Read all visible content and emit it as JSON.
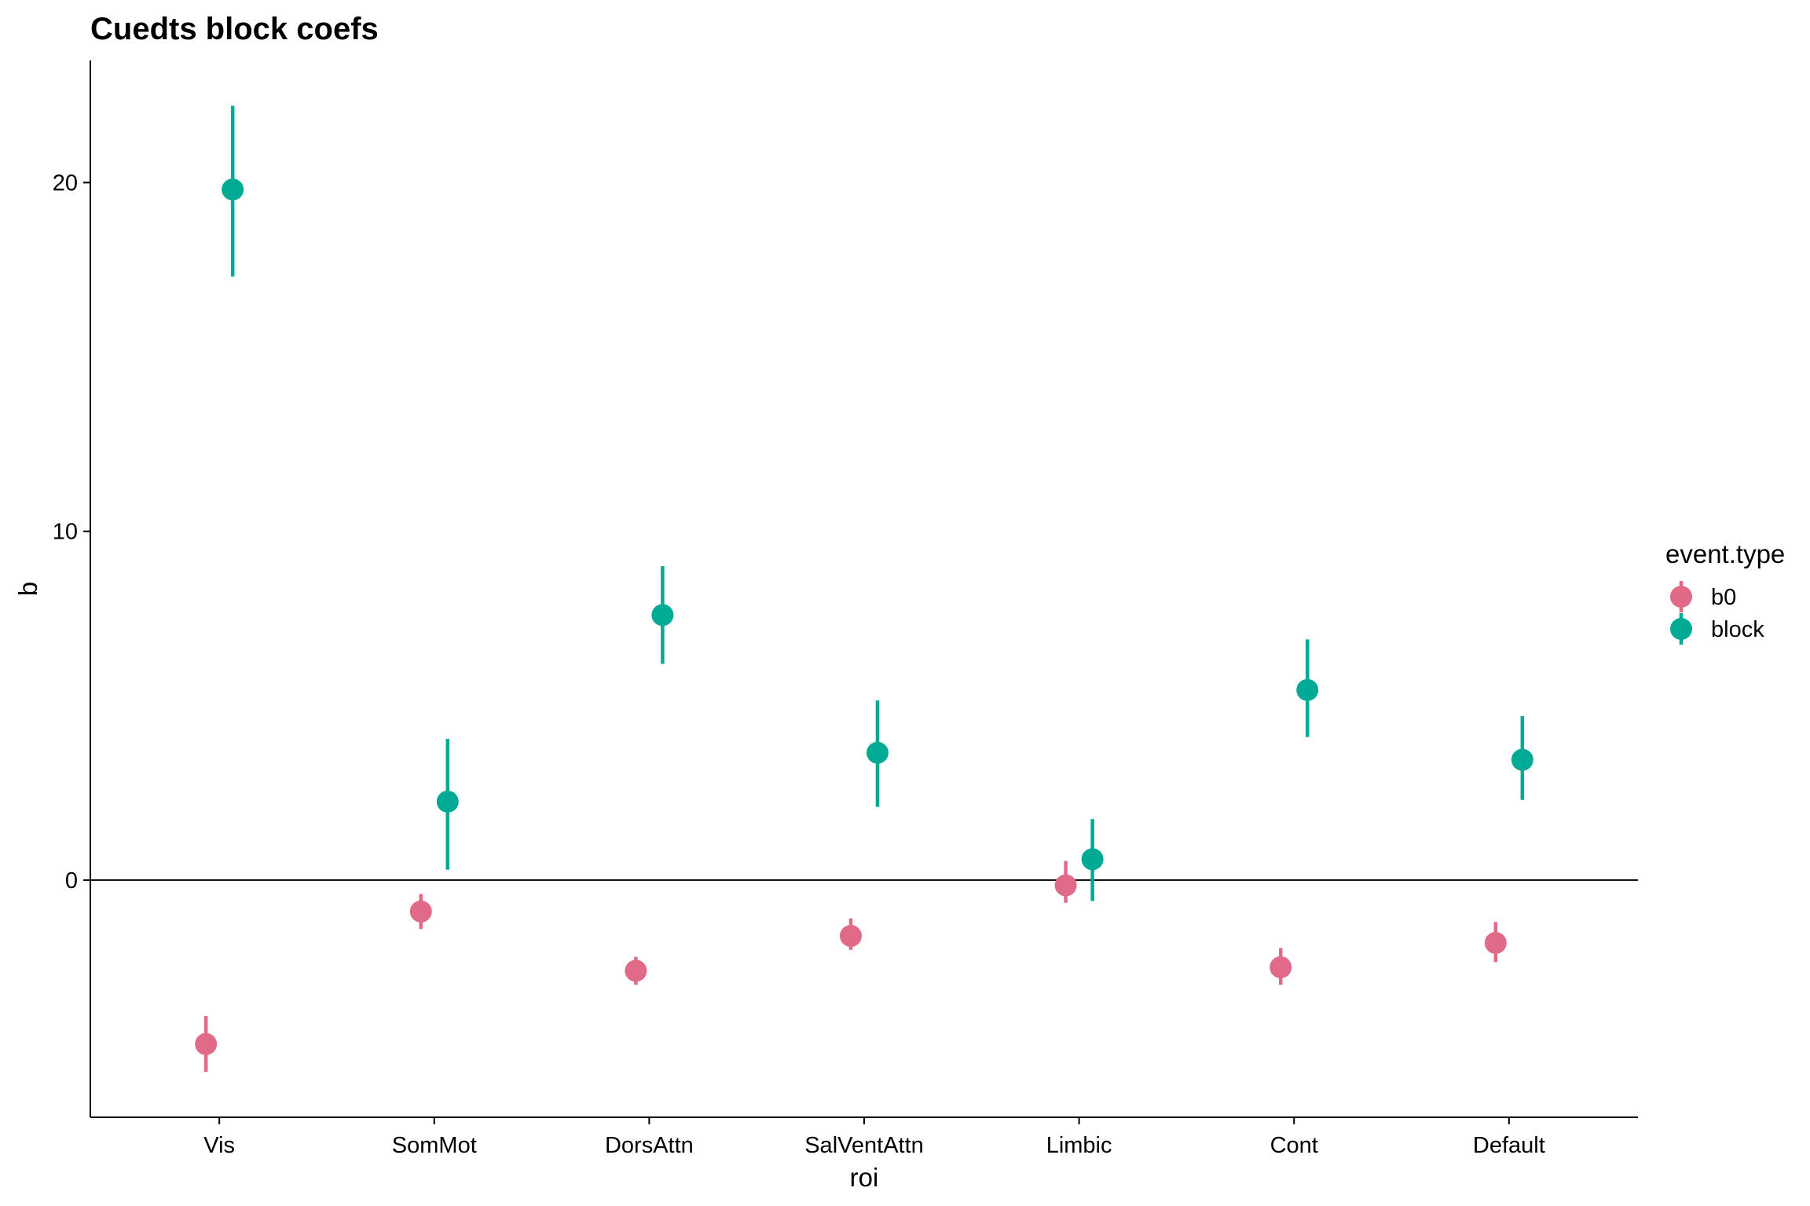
{
  "chart_data": {
    "type": "scatter",
    "title": "Cuedts block coefs",
    "xlabel": "roi",
    "ylabel": "b",
    "categories": [
      "Vis",
      "SomMot",
      "DorsAttn",
      "SalVentAttn",
      "Limbic",
      "Cont",
      "Default"
    ],
    "yticks": [
      "0",
      "10",
      "20"
    ],
    "ylim": [
      -6.8,
      23.5
    ],
    "hline": 0,
    "grid": false,
    "legend": {
      "title": "event.type",
      "position": "right"
    },
    "series": [
      {
        "name": "b0",
        "color": "#E06A87",
        "values": [
          -4.7,
          -0.9,
          -2.6,
          -1.6,
          -0.15,
          -2.5,
          -1.8
        ],
        "lower": [
          -5.5,
          -1.4,
          -3.0,
          -2.0,
          -0.65,
          -3.0,
          -2.35
        ],
        "upper": [
          -3.9,
          -0.4,
          -2.2,
          -1.1,
          0.55,
          -1.95,
          -1.2
        ]
      },
      {
        "name": "block",
        "color": "#00AA94",
        "values": [
          19.8,
          2.25,
          7.6,
          3.65,
          0.6,
          5.45,
          3.45
        ],
        "lower": [
          17.3,
          0.3,
          6.2,
          2.1,
          -0.6,
          4.1,
          2.3
        ],
        "upper": [
          22.2,
          4.05,
          9.0,
          5.15,
          1.75,
          6.9,
          4.7
        ]
      }
    ]
  }
}
